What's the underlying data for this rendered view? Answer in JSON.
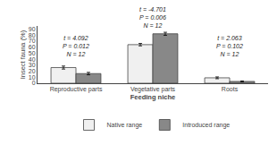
{
  "chart_data": {
    "type": "bar",
    "categories": [
      "Reproductive parts",
      "Vegetative parts",
      "Roots"
    ],
    "series": [
      {
        "name": "Native range",
        "color": "#F0F0F0",
        "values": [
          26,
          64,
          9
        ],
        "errors": [
          2.5,
          2.0,
          1.5
        ]
      },
      {
        "name": "Introduced range",
        "color": "#888888",
        "values": [
          16,
          82,
          3
        ],
        "errors": [
          2.0,
          2.5,
          0.8
        ]
      }
    ],
    "xlabel": "Feeding niche",
    "ylabel": "Insect fauna (%)",
    "ylim": [
      0,
      95
    ],
    "yticks": [
      0,
      10,
      20,
      30,
      40,
      50,
      60,
      70,
      80,
      90
    ],
    "annotations": [
      {
        "text": "t = 4.092\nP = 0.012\nN = 12",
        "x": "Reproductive parts",
        "y": 40
      },
      {
        "text": "t = -4.701\nP = 0.006\nN = 12",
        "x": "Vegetative parts",
        "y": 87
      },
      {
        "text": "t = 2.063\nP = 0.102\nN = 12",
        "x": "Roots",
        "y": 40
      }
    ],
    "grid": false,
    "legend": "bottom"
  }
}
